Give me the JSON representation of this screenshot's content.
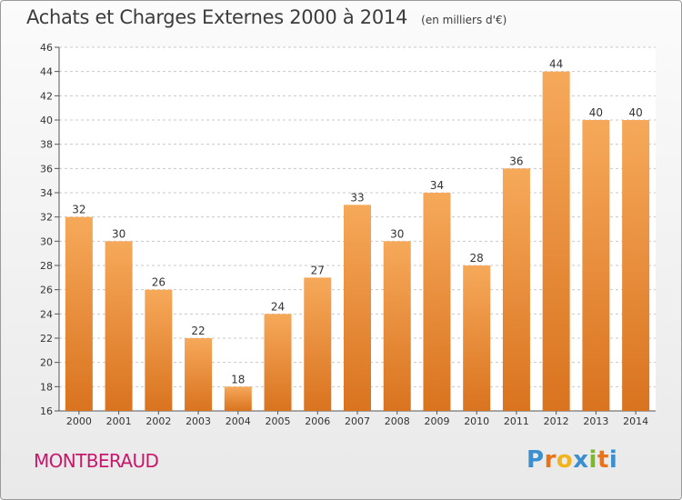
{
  "header": {
    "title": "Achats et Charges Externes 2000 à 2014",
    "subtitle": "(en milliers d'€)"
  },
  "footer": {
    "commune": "MONTBERAUD",
    "brand": {
      "letters": [
        "P",
        "r",
        "o",
        "x",
        "i",
        "t",
        "i"
      ],
      "colors": [
        "#3a8fd0",
        "#e8731a",
        "#f2b41b",
        "#3a8fd0",
        "#7cb82f",
        "#e8731a",
        "#3a8fd0"
      ]
    }
  },
  "chart_data": {
    "type": "bar",
    "categories": [
      "2000",
      "2001",
      "2002",
      "2003",
      "2004",
      "2005",
      "2006",
      "2007",
      "2008",
      "2009",
      "2010",
      "2011",
      "2012",
      "2013",
      "2014"
    ],
    "values": [
      32,
      30,
      26,
      22,
      18,
      24,
      27,
      33,
      30,
      34,
      28,
      36,
      44,
      40,
      40
    ],
    "title": "Achats et Charges Externes 2000 à 2014",
    "xlabel": "",
    "ylabel": "",
    "ylim": [
      16,
      46
    ],
    "yticks": [
      16,
      18,
      20,
      22,
      24,
      26,
      28,
      30,
      32,
      34,
      36,
      38,
      40,
      42,
      44,
      46
    ],
    "grid": "horizontal dashed",
    "bar_colors": {
      "top": "#f6a95a",
      "bottom": "#d9731f"
    }
  }
}
